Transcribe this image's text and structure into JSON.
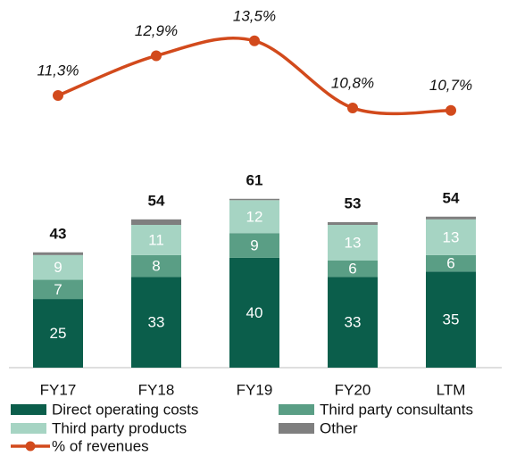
{
  "chart_data": {
    "type": "bar",
    "stacked": true,
    "categories": [
      "FY17",
      "FY18",
      "FY19",
      "FY20",
      "LTM"
    ],
    "series": [
      {
        "name": "Direct operating costs",
        "color": "#0b5e4b",
        "values": [
          25,
          33,
          40,
          33,
          35
        ]
      },
      {
        "name": "Third party consultants",
        "color": "#5a9e85",
        "values": [
          7,
          8,
          9,
          6,
          6
        ]
      },
      {
        "name": "Third party products",
        "color": "#a6d4c3",
        "values": [
          9,
          11,
          12,
          13,
          13
        ]
      },
      {
        "name": "Other",
        "color": "#7f7f7f",
        "values": [
          1,
          2,
          0.5,
          1,
          1
        ],
        "show_labels": false
      },
      {
        "name": "% of revenues",
        "type": "line",
        "axis": "y2",
        "color": "#d24a1c",
        "values": [
          11.3,
          12.9,
          13.5,
          10.8,
          10.7
        ],
        "value_labels": [
          "11,3%",
          "12,9%",
          "13,5%",
          "10,8%",
          "10,7%"
        ]
      }
    ],
    "totals": [
      43,
      54,
      61,
      53,
      54
    ],
    "ylim": [
      0,
      65
    ],
    "y2lim": [
      8.5,
      15
    ]
  }
}
